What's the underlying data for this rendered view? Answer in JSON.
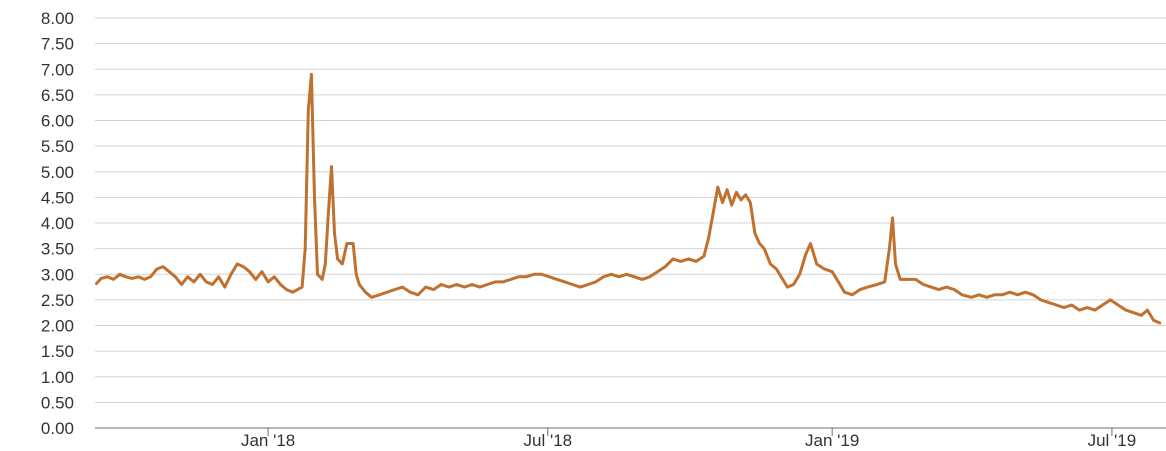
{
  "chart_data": {
    "type": "line",
    "title": "",
    "xlabel": "",
    "ylabel": "",
    "ylim": [
      0,
      8
    ],
    "xlim": [
      "2017-09-11",
      "2019-08-05"
    ],
    "y_ticks": [
      "0.00",
      "0.50",
      "1.00",
      "1.50",
      "2.00",
      "2.50",
      "3.00",
      "3.50",
      "4.00",
      "4.50",
      "5.00",
      "5.50",
      "6.00",
      "6.50",
      "7.00",
      "7.50",
      "8.00"
    ],
    "x_ticks": [
      {
        "label": "Jan '18",
        "date": "2018-01-01"
      },
      {
        "label": "Jul '18",
        "date": "2018-07-01"
      },
      {
        "label": "Jan '19",
        "date": "2019-01-01"
      },
      {
        "label": "Jul '19",
        "date": "2019-07-01"
      }
    ],
    "grid": true,
    "color": "#c0702f",
    "series": [
      {
        "points": [
          [
            "2017-09-12",
            2.82
          ],
          [
            "2017-09-15",
            2.92
          ],
          [
            "2017-09-19",
            2.95
          ],
          [
            "2017-09-23",
            2.9
          ],
          [
            "2017-09-27",
            3.0
          ],
          [
            "2017-10-01",
            2.95
          ],
          [
            "2017-10-05",
            2.92
          ],
          [
            "2017-10-09",
            2.95
          ],
          [
            "2017-10-13",
            2.9
          ],
          [
            "2017-10-17",
            2.95
          ],
          [
            "2017-10-21",
            3.1
          ],
          [
            "2017-10-25",
            3.15
          ],
          [
            "2017-10-29",
            3.05
          ],
          [
            "2017-11-02",
            2.95
          ],
          [
            "2017-11-06",
            2.8
          ],
          [
            "2017-11-10",
            2.95
          ],
          [
            "2017-11-14",
            2.85
          ],
          [
            "2017-11-18",
            3.0
          ],
          [
            "2017-11-22",
            2.85
          ],
          [
            "2017-11-26",
            2.8
          ],
          [
            "2017-11-30",
            2.95
          ],
          [
            "2017-12-04",
            2.75
          ],
          [
            "2017-12-08",
            3.0
          ],
          [
            "2017-12-12",
            3.2
          ],
          [
            "2017-12-16",
            3.15
          ],
          [
            "2017-12-20",
            3.05
          ],
          [
            "2017-12-24",
            2.9
          ],
          [
            "2017-12-28",
            3.05
          ],
          [
            "2018-01-01",
            2.85
          ],
          [
            "2018-01-05",
            2.95
          ],
          [
            "2018-01-09",
            2.8
          ],
          [
            "2018-01-13",
            2.7
          ],
          [
            "2018-01-17",
            2.65
          ],
          [
            "2018-01-20",
            2.7
          ],
          [
            "2018-01-23",
            2.75
          ],
          [
            "2018-01-25",
            3.5
          ],
          [
            "2018-01-27",
            6.2
          ],
          [
            "2018-01-29",
            6.9
          ],
          [
            "2018-01-31",
            4.5
          ],
          [
            "2018-02-02",
            3.0
          ],
          [
            "2018-02-05",
            2.9
          ],
          [
            "2018-02-07",
            3.2
          ],
          [
            "2018-02-09",
            4.2
          ],
          [
            "2018-02-11",
            5.1
          ],
          [
            "2018-02-13",
            3.8
          ],
          [
            "2018-02-15",
            3.3
          ],
          [
            "2018-02-18",
            3.2
          ],
          [
            "2018-02-21",
            3.6
          ],
          [
            "2018-02-25",
            3.6
          ],
          [
            "2018-02-27",
            3.0
          ],
          [
            "2018-03-01",
            2.8
          ],
          [
            "2018-03-05",
            2.65
          ],
          [
            "2018-03-09",
            2.55
          ],
          [
            "2018-03-14",
            2.6
          ],
          [
            "2018-03-19",
            2.65
          ],
          [
            "2018-03-24",
            2.7
          ],
          [
            "2018-03-29",
            2.75
          ],
          [
            "2018-04-03",
            2.65
          ],
          [
            "2018-04-08",
            2.6
          ],
          [
            "2018-04-13",
            2.75
          ],
          [
            "2018-04-18",
            2.7
          ],
          [
            "2018-04-23",
            2.8
          ],
          [
            "2018-04-28",
            2.75
          ],
          [
            "2018-05-03",
            2.8
          ],
          [
            "2018-05-08",
            2.75
          ],
          [
            "2018-05-13",
            2.8
          ],
          [
            "2018-05-18",
            2.75
          ],
          [
            "2018-05-23",
            2.8
          ],
          [
            "2018-05-28",
            2.85
          ],
          [
            "2018-06-02",
            2.85
          ],
          [
            "2018-06-07",
            2.9
          ],
          [
            "2018-06-12",
            2.95
          ],
          [
            "2018-06-17",
            2.95
          ],
          [
            "2018-06-22",
            3.0
          ],
          [
            "2018-06-27",
            3.0
          ],
          [
            "2018-07-02",
            2.95
          ],
          [
            "2018-07-07",
            2.9
          ],
          [
            "2018-07-12",
            2.85
          ],
          [
            "2018-07-17",
            2.8
          ],
          [
            "2018-07-22",
            2.75
          ],
          [
            "2018-07-27",
            2.8
          ],
          [
            "2018-08-01",
            2.85
          ],
          [
            "2018-08-06",
            2.95
          ],
          [
            "2018-08-11",
            3.0
          ],
          [
            "2018-08-16",
            2.95
          ],
          [
            "2018-08-21",
            3.0
          ],
          [
            "2018-08-26",
            2.95
          ],
          [
            "2018-08-31",
            2.9
          ],
          [
            "2018-09-05",
            2.95
          ],
          [
            "2018-09-10",
            3.05
          ],
          [
            "2018-09-15",
            3.15
          ],
          [
            "2018-09-20",
            3.3
          ],
          [
            "2018-09-25",
            3.25
          ],
          [
            "2018-09-30",
            3.3
          ],
          [
            "2018-10-05",
            3.25
          ],
          [
            "2018-10-10",
            3.35
          ],
          [
            "2018-10-13",
            3.7
          ],
          [
            "2018-10-16",
            4.2
          ],
          [
            "2018-10-19",
            4.7
          ],
          [
            "2018-10-22",
            4.4
          ],
          [
            "2018-10-25",
            4.65
          ],
          [
            "2018-10-28",
            4.35
          ],
          [
            "2018-10-31",
            4.6
          ],
          [
            "2018-11-03",
            4.45
          ],
          [
            "2018-11-06",
            4.55
          ],
          [
            "2018-11-09",
            4.4
          ],
          [
            "2018-11-12",
            3.8
          ],
          [
            "2018-11-15",
            3.6
          ],
          [
            "2018-11-18",
            3.5
          ],
          [
            "2018-11-22",
            3.2
          ],
          [
            "2018-11-26",
            3.1
          ],
          [
            "2018-11-30",
            2.9
          ],
          [
            "2018-12-03",
            2.75
          ],
          [
            "2018-12-07",
            2.8
          ],
          [
            "2018-12-11",
            3.0
          ],
          [
            "2018-12-15",
            3.4
          ],
          [
            "2018-12-18",
            3.6
          ],
          [
            "2018-12-22",
            3.2
          ],
          [
            "2018-12-27",
            3.1
          ],
          [
            "2019-01-01",
            3.05
          ],
          [
            "2019-01-05",
            2.85
          ],
          [
            "2019-01-09",
            2.65
          ],
          [
            "2019-01-14",
            2.6
          ],
          [
            "2019-01-19",
            2.7
          ],
          [
            "2019-01-24",
            2.75
          ],
          [
            "2019-01-30",
            2.8
          ],
          [
            "2019-02-04",
            2.85
          ],
          [
            "2019-02-07",
            3.5
          ],
          [
            "2019-02-09",
            4.1
          ],
          [
            "2019-02-11",
            3.2
          ],
          [
            "2019-02-14",
            2.9
          ],
          [
            "2019-02-19",
            2.9
          ],
          [
            "2019-02-24",
            2.9
          ],
          [
            "2019-03-01",
            2.8
          ],
          [
            "2019-03-06",
            2.75
          ],
          [
            "2019-03-11",
            2.7
          ],
          [
            "2019-03-16",
            2.75
          ],
          [
            "2019-03-21",
            2.7
          ],
          [
            "2019-03-26",
            2.6
          ],
          [
            "2019-04-01",
            2.55
          ],
          [
            "2019-04-06",
            2.6
          ],
          [
            "2019-04-11",
            2.55
          ],
          [
            "2019-04-16",
            2.6
          ],
          [
            "2019-04-21",
            2.6
          ],
          [
            "2019-04-26",
            2.65
          ],
          [
            "2019-05-01",
            2.6
          ],
          [
            "2019-05-06",
            2.65
          ],
          [
            "2019-05-11",
            2.6
          ],
          [
            "2019-05-16",
            2.5
          ],
          [
            "2019-05-21",
            2.45
          ],
          [
            "2019-05-26",
            2.4
          ],
          [
            "2019-05-31",
            2.35
          ],
          [
            "2019-06-05",
            2.4
          ],
          [
            "2019-06-10",
            2.3
          ],
          [
            "2019-06-15",
            2.35
          ],
          [
            "2019-06-20",
            2.3
          ],
          [
            "2019-06-25",
            2.4
          ],
          [
            "2019-06-30",
            2.5
          ],
          [
            "2019-07-05",
            2.4
          ],
          [
            "2019-07-10",
            2.3
          ],
          [
            "2019-07-15",
            2.25
          ],
          [
            "2019-07-20",
            2.2
          ],
          [
            "2019-07-24",
            2.3
          ],
          [
            "2019-07-28",
            2.1
          ],
          [
            "2019-08-01",
            2.05
          ]
        ]
      }
    ]
  }
}
